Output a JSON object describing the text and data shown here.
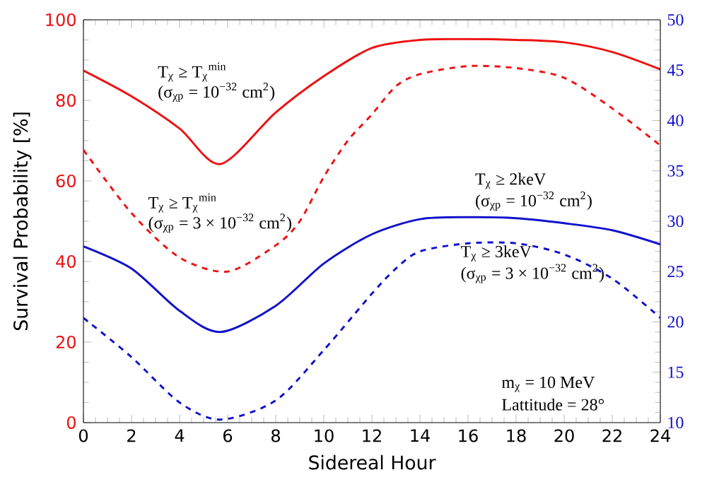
{
  "chart_data": {
    "type": "line",
    "xlabel": "Sidereal Hour",
    "ylabel": "Survival Probability [%]",
    "xlim": [
      0,
      24
    ],
    "xticks": [
      0,
      2,
      4,
      6,
      8,
      10,
      12,
      14,
      16,
      18,
      20,
      22,
      24
    ],
    "ylim": [
      0,
      100
    ],
    "yticks": [
      0,
      20,
      40,
      60,
      80,
      100
    ],
    "y2lim": [
      10,
      50
    ],
    "y2ticks": [
      10,
      15,
      20,
      25,
      30,
      35,
      40,
      45,
      50
    ],
    "marker": "none",
    "series": [
      {
        "color": "#ee1111",
        "axis": "y",
        "line_style": "solid",
        "x": [
          0,
          2,
          4,
          5.7,
          8,
          10,
          12,
          14,
          16,
          18,
          20,
          22,
          24
        ],
        "values": [
          87.4,
          81,
          73,
          64.2,
          77,
          86,
          93,
          95,
          95.2,
          95,
          94.4,
          92,
          87.7
        ]
      },
      {
        "color": "#ee1111",
        "axis": "y",
        "line_style": "dashed",
        "x": [
          0,
          2,
          4,
          6,
          8,
          9,
          10,
          11,
          12,
          13,
          14,
          16,
          18,
          20,
          22,
          24
        ],
        "values": [
          67.7,
          52,
          41,
          37.5,
          44,
          50,
          61,
          70,
          76.5,
          83.5,
          86.5,
          88.5,
          88,
          85.6,
          78,
          68.8
        ]
      },
      {
        "color": "#1111cc",
        "axis": "y2",
        "line_style": "solid",
        "x": [
          0,
          2,
          4,
          5.7,
          8,
          10,
          12,
          14,
          16,
          18,
          20,
          22,
          24
        ],
        "values": [
          27.5,
          25.3,
          21.1,
          19.0,
          21.6,
          25.8,
          28.7,
          30.2,
          30.4,
          30.3,
          29.8,
          29.1,
          27.7
        ]
      },
      {
        "color": "#1111cc",
        "axis": "y2",
        "line_style": "dashed",
        "x": [
          0,
          2,
          4,
          5.7,
          8,
          10,
          12,
          13,
          14,
          16,
          18,
          20,
          22,
          24
        ],
        "values": [
          20.4,
          16.5,
          12.0,
          10.3,
          12.2,
          17.2,
          22.8,
          25.3,
          27.0,
          27.8,
          27.8,
          26.7,
          24.3,
          20.4
        ]
      }
    ],
    "annotations": [
      "T$_{χ}$ ≥ T$_{χ}$$^{min}$",
      "(σ$_{χp}$ = 10$^{−32}$ cm$^{2}$)",
      "T$_{χ}$ ≥ T$_{χ}$$^{min}$",
      "(σ$_{χp}$ = 3 × 10$^{−32}$ cm$^{2}$)",
      "T$_{χ}$ ≥ 2keV",
      "(σ$_{χp}$ = 10$^{−32}$ cm$^{2}$)",
      "T$_{χ}$ ≥ 3keV",
      "(σ$_{χp}$ = 3 × 10$^{−32}$ cm$^{2}$)",
      "m$_{χ}$ = 10 MeV",
      "Lattitude = 28°"
    ]
  }
}
